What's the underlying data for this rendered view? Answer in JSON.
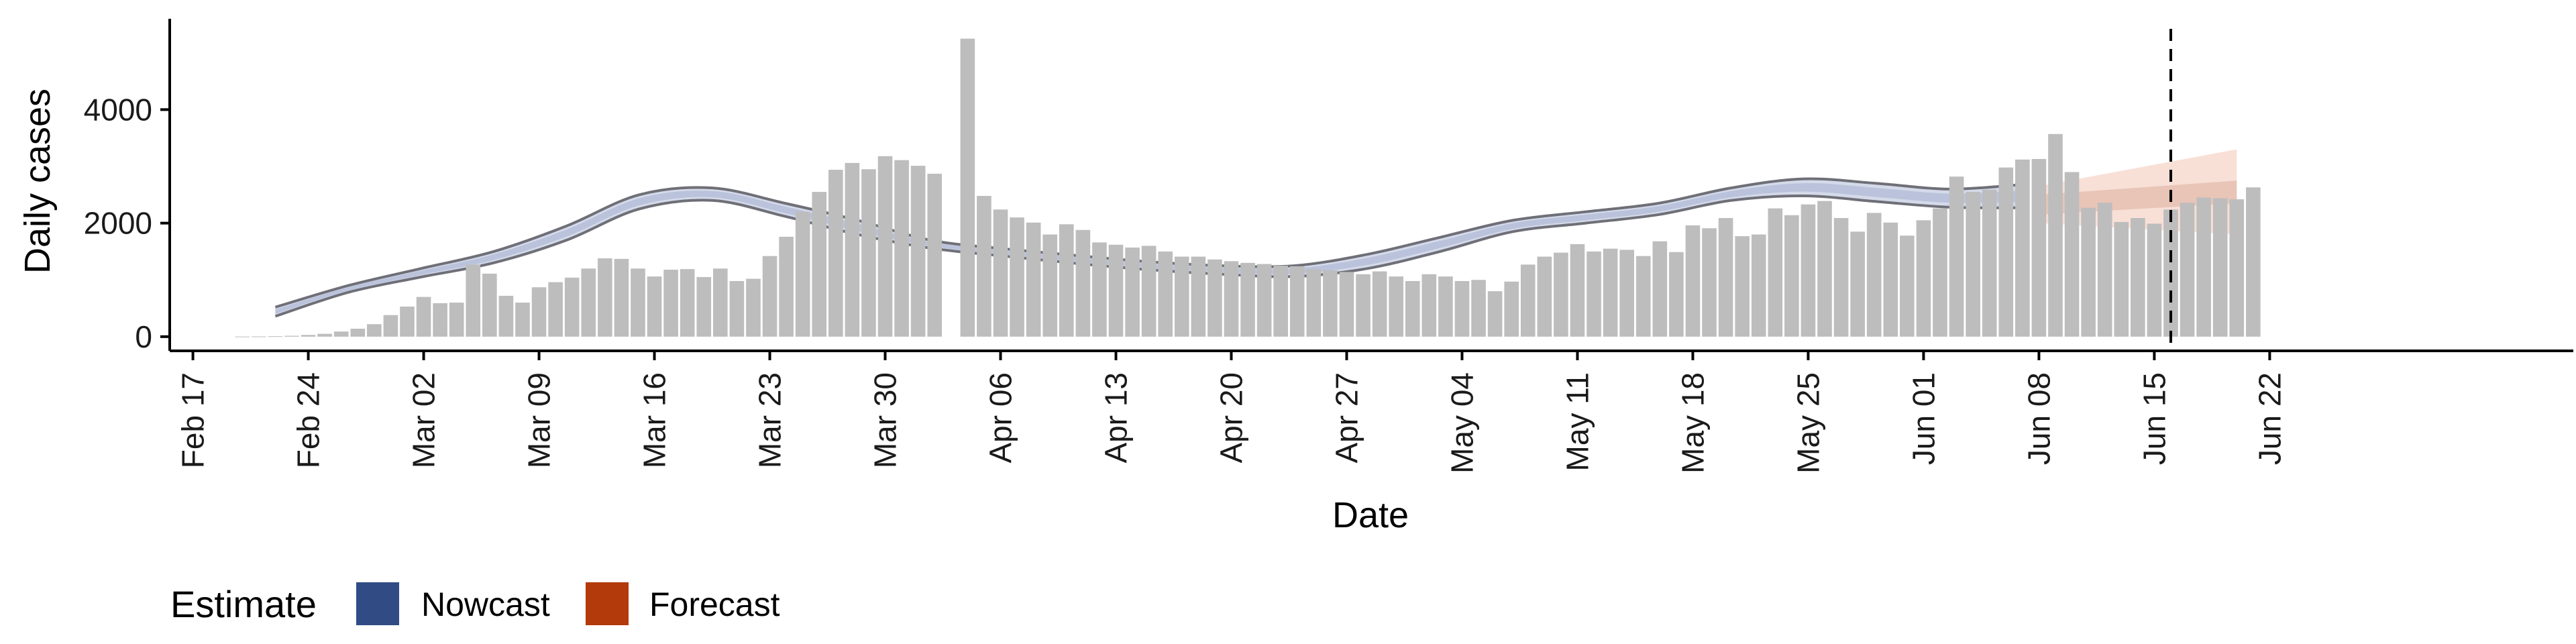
{
  "chart_data": {
    "type": "bar",
    "xlabel": "Date",
    "ylabel": "Daily cases",
    "x_tick_labels": [
      "Feb 17",
      "Feb 24",
      "Mar 02",
      "Mar 09",
      "Mar 16",
      "Mar 23",
      "Mar 30",
      "Apr 06",
      "Apr 13",
      "Apr 20",
      "Apr 27",
      "May 04",
      "May 11",
      "May 18",
      "May 25",
      "Jun 01",
      "Jun 08",
      "Jun 15",
      "Jun 22"
    ],
    "y_tick_labels": [
      "0",
      "2000",
      "4000"
    ],
    "y_ticks": [
      0,
      2000,
      4000
    ],
    "ylim": [
      -250,
      5600
    ],
    "x_domain": [
      "2020-02-16",
      "2020-06-24"
    ],
    "bars": {
      "start_date": "2020-02-20",
      "values": [
        2,
        4,
        8,
        15,
        30,
        50,
        90,
        140,
        220,
        380,
        530,
        700,
        590,
        600,
        1270,
        1110,
        720,
        600,
        870,
        960,
        1040,
        1200,
        1380,
        1370,
        1200,
        1060,
        1180,
        1190,
        1050,
        1200,
        980,
        1020,
        1420,
        1760,
        2200,
        2550,
        2940,
        3060,
        2950,
        3180,
        3110,
        3010,
        2870,
        null,
        5250,
        2480,
        2240,
        2100,
        2010,
        1800,
        1980,
        1880,
        1660,
        1620,
        1570,
        1600,
        1500,
        1410,
        1410,
        1360,
        1330,
        1300,
        1280,
        1250,
        1240,
        1190,
        1170,
        1140,
        1100,
        1150,
        1060,
        980,
        1100,
        1060,
        980,
        1000,
        800,
        970,
        1270,
        1410,
        1480,
        1630,
        1500,
        1550,
        1530,
        1420,
        1680,
        1490,
        1960,
        1910,
        2090,
        1770,
        1800,
        2260,
        2140,
        2330,
        2390,
        2090,
        1850,
        2180,
        2010,
        1780,
        2050,
        2260,
        2820,
        2550,
        2590,
        2980,
        3120,
        3130,
        3570,
        2900,
        2270,
        2360,
        2020,
        2090,
        1990,
        2240,
        2360,
        2450,
        2440,
        2420,
        2630
      ]
    },
    "nowcast": {
      "start_date": "2020-02-22",
      "end_date": "2020-06-07",
      "band_upper": [
        520,
        2620,
        2780,
        2680
      ],
      "band_lower": [
        360,
        2400,
        2300,
        2270
      ]
    },
    "forecast": {
      "start_date": "2020-06-08",
      "end_date": "2020-06-20",
      "outer_upper": [
        2650,
        3300
      ],
      "outer_lower": [
        2000,
        1800
      ],
      "inner_upper": [
        2500,
        2750
      ],
      "inner_lower": [
        2150,
        2350
      ]
    },
    "reference_line_date": "2020-06-16",
    "legend": {
      "title": "Estimate",
      "position": "bottom-left",
      "items": [
        {
          "label": "Nowcast",
          "color": "#314c85"
        },
        {
          "label": "Forecast",
          "color": "#b33a0b"
        }
      ]
    },
    "colors": {
      "bar": "#bdbdbd",
      "nowcast_band": "#c6cde2",
      "nowcast_outline": "#6f6f78",
      "forecast_outer": "#f6d8cd",
      "forecast_inner": "#e6c0b2",
      "axis": "#000000"
    },
    "grid": false
  }
}
